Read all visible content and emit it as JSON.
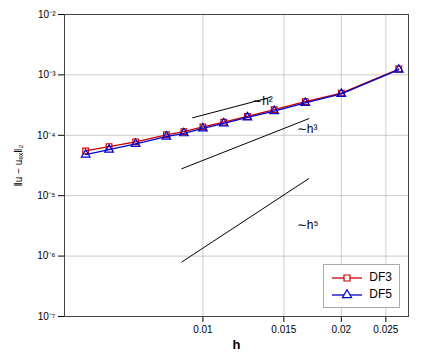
{
  "chart_data": {
    "type": "line",
    "xlabel": "h",
    "ylabel": "‖u − uₑₓ‖₂",
    "log": true,
    "grid": true,
    "legend": "lower right",
    "xlim": [
      0.005,
      0.028
    ],
    "ylim": [
      1e-07,
      0.01
    ],
    "xticks": [
      0.01,
      0.015,
      0.02,
      0.025
    ],
    "yticks": [
      {
        "value": 1e-07,
        "label": "10⁻⁷"
      },
      {
        "value": 1e-06,
        "label": "10⁻⁶"
      },
      {
        "value": 1e-05,
        "label": "10⁻⁵"
      },
      {
        "value": 0.0001,
        "label": "10⁻⁴"
      },
      {
        "value": 0.001,
        "label": "10⁻³"
      },
      {
        "value": 0.01,
        "label": "10⁻²"
      }
    ],
    "x": [
      0.00556,
      0.00625,
      0.00714,
      0.00833,
      0.00909,
      0.01,
      0.0111,
      0.0125,
      0.01429,
      0.0167,
      0.02,
      0.02667
    ],
    "series": [
      {
        "name": "DF3",
        "color": "#cc0000",
        "marker": "square",
        "values": [
          5.5e-05,
          6.5e-05,
          7.8e-05,
          0.000102,
          0.000115,
          0.000138,
          0.000165,
          0.000205,
          0.000265,
          0.00036,
          0.0005,
          0.00125
        ]
      },
      {
        "name": "DF5",
        "color": "#0000cc",
        "marker": "triangle",
        "values": [
          4.8e-05,
          5.8e-05,
          7.2e-05,
          9.5e-05,
          0.000108,
          0.00013,
          0.000158,
          0.000198,
          0.000252,
          0.000345,
          0.000485,
          0.00122
        ]
      }
    ],
    "lines": [
      {
        "color": "#000000",
        "x": [
          0.0095,
          0.014
        ],
        "y": [
          0.000195,
          0.0004234903047091413
        ]
      },
      {
        "color": "#000000",
        "x": [
          0.009,
          0.017
        ],
        "y": [
          2.8e-05,
          0.00018870233196159123
        ]
      },
      {
        "color": "#000000",
        "x": [
          0.009,
          0.017
        ],
        "y": [
          8e-07,
          1.9236322376e-05
        ]
      }
    ],
    "annotations": [
      {
        "text": "∼h²",
        "x": 0.0128,
        "y": 0.00032
      },
      {
        "text": "∼h³",
        "x": 0.016,
        "y": 0.00011
      },
      {
        "text": "∼h⁵",
        "x": 0.016,
        "y": 2.8e-06
      }
    ]
  }
}
